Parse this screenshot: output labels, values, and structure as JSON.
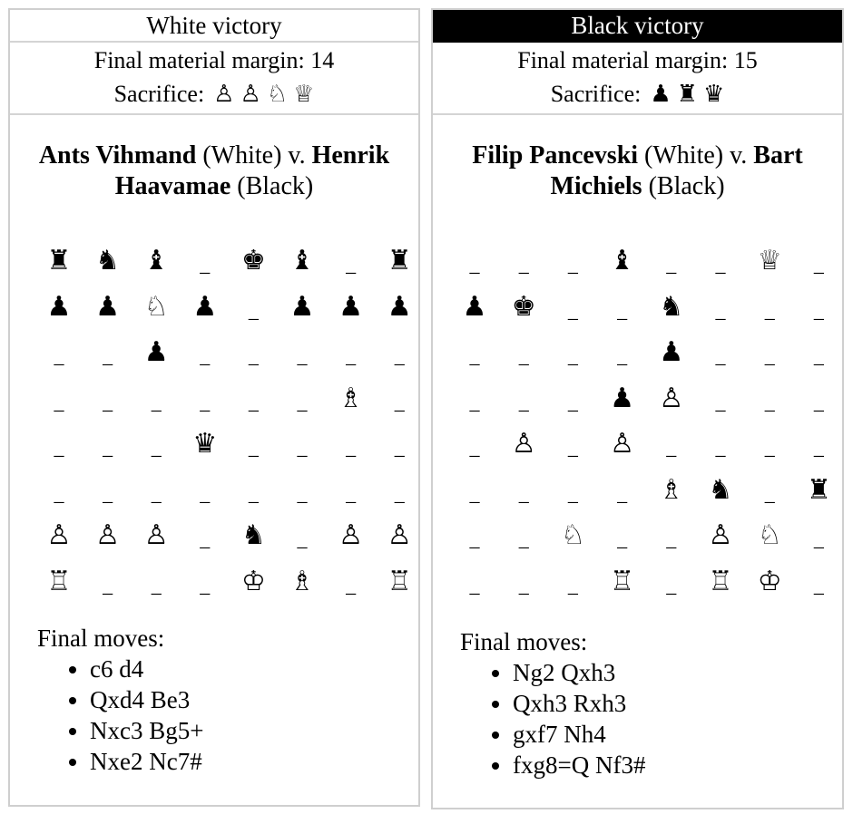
{
  "games": [
    {
      "result": "White victory",
      "margin_label": "Final material margin: 14",
      "sacrifice_label": "Sacrifice:",
      "sacrifice_pieces": [
        "♙",
        "♙",
        "♘",
        "♕"
      ],
      "white_player": "Ants Vihmand",
      "white_tag": " (White) v. ",
      "black_player": "Henrik Haavamae",
      "black_tag": " (Black)",
      "board": [
        [
          "♜",
          "♞",
          "♝",
          "_",
          "♚",
          "♝",
          "_",
          "♜"
        ],
        [
          "♟",
          "♟",
          "♘",
          "♟",
          "_",
          "♟",
          "♟",
          "♟"
        ],
        [
          "_",
          "_",
          "♟",
          "_",
          "_",
          "_",
          "_",
          "_"
        ],
        [
          "_",
          "_",
          "_",
          "_",
          "_",
          "_",
          "♗",
          "_"
        ],
        [
          "_",
          "_",
          "_",
          "♛",
          "_",
          "_",
          "_",
          "_"
        ],
        [
          "_",
          "_",
          "_",
          "_",
          "_",
          "_",
          "_",
          "_"
        ],
        [
          "♙",
          "♙",
          "♙",
          "_",
          "♞",
          "_",
          "♙",
          "♙"
        ],
        [
          "♖",
          "_",
          "_",
          "_",
          "♔",
          "♗",
          "_",
          "♖"
        ]
      ],
      "moves_title": "Final moves:",
      "moves": [
        "c6 d4",
        "Qxd4 Be3",
        "Nxc3 Bg5+",
        "Nxe2 Nc7#"
      ]
    },
    {
      "result": "Black victory",
      "margin_label": "Final material margin: 15",
      "sacrifice_label": "Sacrifice:",
      "sacrifice_pieces": [
        "♟",
        "♜",
        "♛"
      ],
      "white_player": "Filip Pancevski",
      "white_tag": " (White) v. ",
      "black_player": "Bart Michiels",
      "black_tag": " (Black)",
      "board": [
        [
          "_",
          "_",
          "_",
          "♝",
          "_",
          "_",
          "♕",
          "_"
        ],
        [
          "♟",
          "♚",
          "_",
          "_",
          "♞",
          "_",
          "_",
          "_"
        ],
        [
          "_",
          "_",
          "_",
          "_",
          "♟",
          "_",
          "_",
          "_"
        ],
        [
          "_",
          "_",
          "_",
          "♟",
          "♙",
          "_",
          "_",
          "_"
        ],
        [
          "_",
          "♙",
          "_",
          "♙",
          "_",
          "_",
          "_",
          "_"
        ],
        [
          "_",
          "_",
          "_",
          "_",
          "♗",
          "♞",
          "_",
          "♜"
        ],
        [
          "_",
          "_",
          "♘",
          "_",
          "_",
          "♙",
          "♘",
          "_"
        ],
        [
          "_",
          "_",
          "_",
          "♖",
          "_",
          "♖",
          "♔",
          "_"
        ]
      ],
      "moves_title": "Final moves:",
      "moves": [
        "Ng2 Qxh3",
        "Qxh3 Rxh3",
        "gxf7 Nh4",
        "fxg8=Q Nf3#"
      ]
    }
  ]
}
